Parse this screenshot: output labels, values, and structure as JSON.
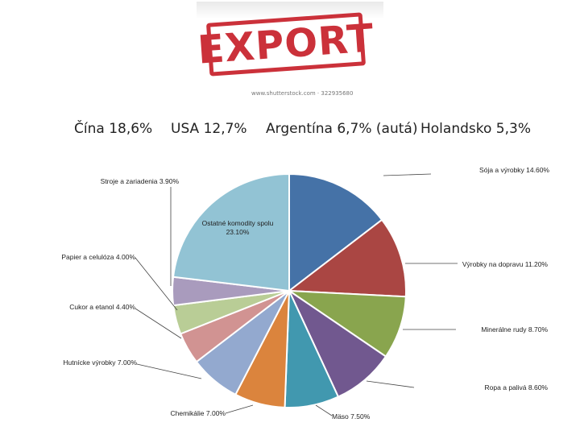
{
  "header": {
    "stamp_text": "EXPORT",
    "stamp_credit": "www.shutterstock.com · 322935680"
  },
  "countries": [
    {
      "label": "Čína 18,6%"
    },
    {
      "label": "USA 12,7%"
    },
    {
      "label": "Argentína 6,7% (autá)"
    },
    {
      "label": "Holandsko 5,3%"
    }
  ],
  "chart_data": {
    "type": "pie",
    "slices": [
      {
        "label": "Sója a výrobky 14.60%",
        "value": 14.6,
        "color": "#4572a7"
      },
      {
        "label": "Výrobky na dopravu 11.20%",
        "value": 11.2,
        "color": "#aa4643"
      },
      {
        "label": "Minerálne rudy 8.70%",
        "value": 8.7,
        "color": "#89a54e"
      },
      {
        "label": "Ropa a palivá 8.60%",
        "value": 8.6,
        "color": "#71588f"
      },
      {
        "label": "Mäso 7.50%",
        "value": 7.5,
        "color": "#4198af"
      },
      {
        "label": "Chemikálie 7.00%",
        "value": 7.0,
        "color": "#db843d"
      },
      {
        "label": "Hutnícke výrobky 7.00%",
        "value": 7.0,
        "color": "#93a9cf"
      },
      {
        "label": "Cukor a etanol 4.40%",
        "value": 4.4,
        "color": "#d19392"
      },
      {
        "label": "Papier a celulóza 4.00%",
        "value": 4.0,
        "color": "#b9cd96"
      },
      {
        "label": "Stroje a zariadenia 3.90%",
        "value": 3.9,
        "color": "#a99bbd"
      },
      {
        "label": "Ostatné komodity spolu 23.10%",
        "value": 23.1,
        "color": "#92c3d4"
      }
    ]
  }
}
